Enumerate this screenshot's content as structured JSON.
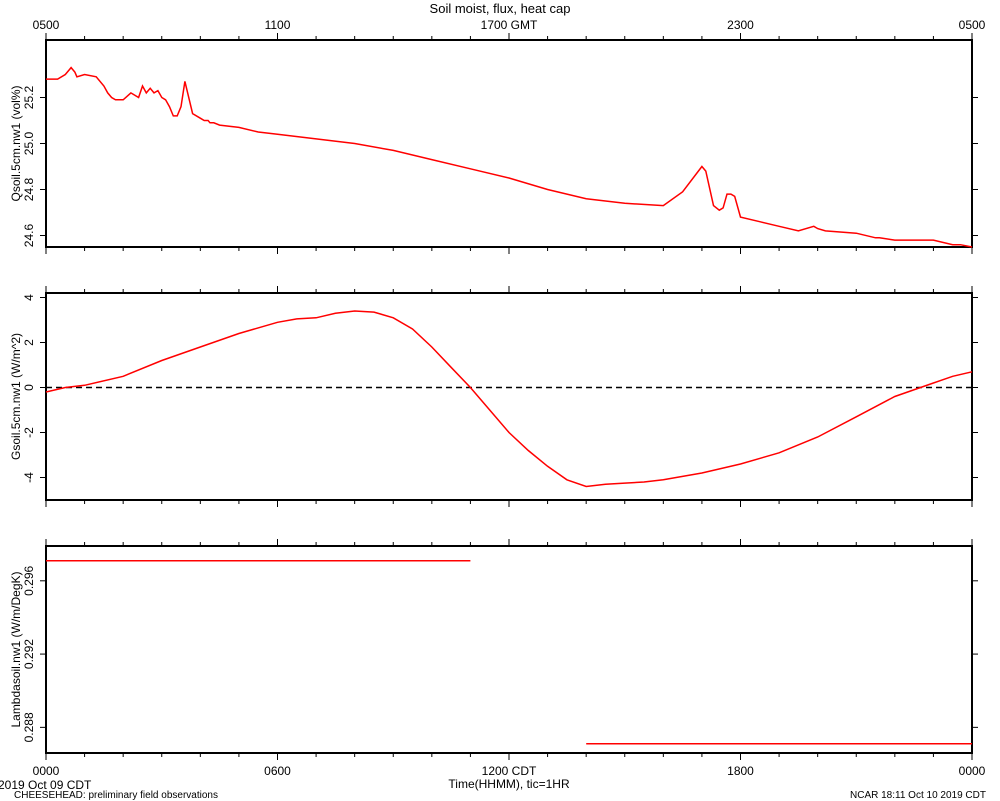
{
  "chart_data": {
    "title": "Soil moist, flux, heat cap",
    "type": "line",
    "top_axis_ticks": [
      "0500",
      "1100",
      "1700 GMT",
      "2300",
      "0500"
    ],
    "bottom_axis_ticks": [
      "0000",
      "0600",
      "1200 CDT",
      "1800",
      "0000"
    ],
    "xlabel": "Time(HHMM), tic=1HR",
    "date_label": "2019 Oct 09 CDT",
    "xlim_hours": [
      0,
      24
    ],
    "line_color": "#ff0000",
    "panels": [
      {
        "ylabel": "Qsoil.5cm.nw1 (vol%)",
        "ylim": [
          24.55,
          25.45
        ],
        "yticks": [
          24.6,
          24.8,
          25.0,
          25.2
        ],
        "ytick_labels": [
          "24.6",
          "24.8",
          "25.0",
          "25.2"
        ],
        "zero_line": false,
        "series": [
          {
            "x": [
              0,
              0.3,
              0.5,
              0.6,
              0.65,
              0.75,
              0.8,
              1.0,
              1.3,
              1.5,
              1.6,
              1.7,
              1.8,
              2.0,
              2.2,
              2.4,
              2.5,
              2.6,
              2.7,
              2.8,
              2.9,
              3.0,
              3.1,
              3.2,
              3.3,
              3.4,
              3.5,
              3.6,
              3.8,
              4.0,
              4.1,
              4.2,
              4.25,
              4.35,
              4.5,
              5.0,
              5.5,
              6.0,
              7.0,
              8.0,
              9.0,
              10.0,
              11.0,
              12.0,
              13.0,
              14.0,
              15.0,
              16.0,
              16.5,
              17.0,
              17.1,
              17.3,
              17.45,
              17.55,
              17.65,
              17.75,
              17.85,
              18.0,
              18.5,
              19.0,
              19.5,
              19.9,
              20.0,
              20.2,
              21.0,
              21.5,
              21.6,
              22.0,
              22.5,
              23.0,
              23.5,
              23.7,
              24.0
            ],
            "y": [
              25.28,
              25.28,
              25.3,
              25.32,
              25.33,
              25.31,
              25.29,
              25.3,
              25.29,
              25.25,
              25.22,
              25.2,
              25.19,
              25.19,
              25.22,
              25.2,
              25.25,
              25.22,
              25.24,
              25.22,
              25.23,
              25.2,
              25.19,
              25.16,
              25.12,
              25.12,
              25.16,
              25.27,
              25.13,
              25.11,
              25.1,
              25.1,
              25.09,
              25.09,
              25.08,
              25.07,
              25.05,
              25.04,
              25.02,
              25.0,
              24.97,
              24.93,
              24.89,
              24.85,
              24.8,
              24.76,
              24.74,
              24.73,
              24.79,
              24.9,
              24.88,
              24.73,
              24.71,
              24.72,
              24.78,
              24.78,
              24.77,
              24.68,
              24.66,
              24.64,
              24.62,
              24.64,
              24.63,
              24.62,
              24.61,
              24.59,
              24.59,
              24.58,
              24.58,
              24.58,
              24.56,
              24.56,
              24.55
            ]
          }
        ]
      },
      {
        "ylabel": "Gsoil.5cm.nw1 (W/m^2)",
        "ylim": [
          -5.0,
          4.2
        ],
        "yticks": [
          -4,
          -2,
          0,
          2,
          4
        ],
        "ytick_labels": [
          "-4",
          "-2",
          "0",
          "2",
          "4"
        ],
        "zero_line": true,
        "series": [
          {
            "x": [
              0,
              0.5,
              1.0,
              2.0,
              3.0,
              4.0,
              5.0,
              6.0,
              6.5,
              7.0,
              7.5,
              8.0,
              8.5,
              9.0,
              9.5,
              10.0,
              10.5,
              11.0,
              11.5,
              12.0,
              12.5,
              13.0,
              13.5,
              14.0,
              14.5,
              15.0,
              15.5,
              16.0,
              17.0,
              18.0,
              19.0,
              20.0,
              21.0,
              22.0,
              23.0,
              23.5,
              24.0
            ],
            "y": [
              -0.2,
              0.0,
              0.1,
              0.5,
              1.2,
              1.8,
              2.4,
              2.9,
              3.05,
              3.1,
              3.3,
              3.4,
              3.35,
              3.1,
              2.6,
              1.8,
              0.9,
              0.0,
              -1.0,
              -2.0,
              -2.8,
              -3.5,
              -4.1,
              -4.4,
              -4.3,
              -4.25,
              -4.2,
              -4.1,
              -3.8,
              -3.4,
              -2.9,
              -2.2,
              -1.3,
              -0.4,
              0.2,
              0.5,
              0.7
            ]
          }
        ]
      },
      {
        "ylabel": "Lambdasoil.nw1 (W/m/DegK)",
        "ylim": [
          0.2866,
          0.2979
        ],
        "yticks": [
          0.288,
          0.292,
          0.296
        ],
        "ytick_labels": [
          "0.288",
          "0.292",
          "0.296"
        ],
        "zero_line": false,
        "series": [
          {
            "x": [
              0,
              11.0
            ],
            "y": [
              0.2971,
              0.2971
            ]
          },
          {
            "x": [
              14.0,
              24.0
            ],
            "y": [
              0.2871,
              0.2871
            ]
          }
        ]
      }
    ]
  },
  "footer": {
    "left": "CHEESEHEAD: preliminary field observations",
    "right": "NCAR 18:11 Oct 10 2019 CDT"
  }
}
